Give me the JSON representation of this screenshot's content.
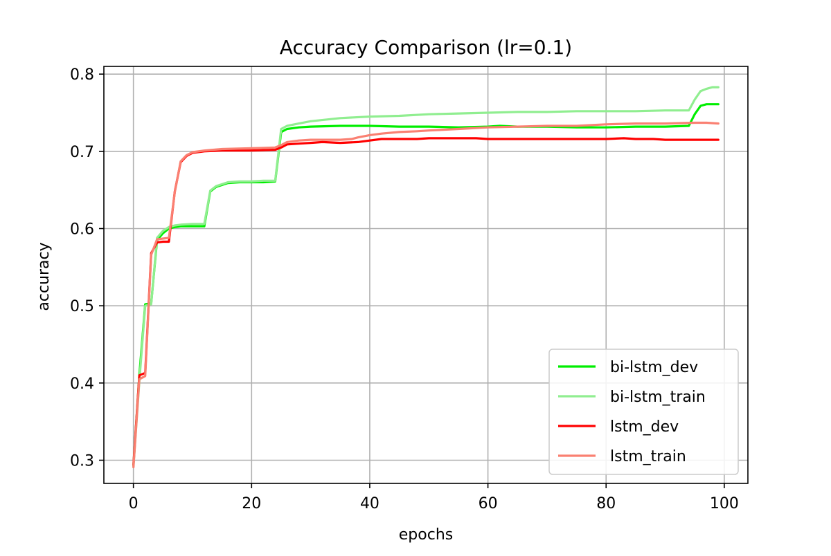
{
  "chart_data": {
    "type": "line",
    "title": "Accuracy Comparison (lr=0.1)",
    "xlabel": "epochs",
    "ylabel": "accuracy",
    "xlim": [
      -5,
      104
    ],
    "ylim": [
      0.27,
      0.81
    ],
    "x_ticks": [
      0,
      20,
      40,
      60,
      80,
      100
    ],
    "y_ticks": [
      0.3,
      0.4,
      0.5,
      0.6,
      0.7,
      0.8
    ],
    "x_tick_labels": [
      "0",
      "20",
      "40",
      "60",
      "80",
      "100"
    ],
    "y_tick_labels": [
      "0.3",
      "0.4",
      "0.5",
      "0.6",
      "0.7",
      "0.8"
    ],
    "grid": true,
    "legend_position": "lower-right",
    "series": [
      {
        "name": "bi-lstm_dev",
        "color": "#00ee00",
        "points": [
          [
            0,
            0.293
          ],
          [
            1,
            0.41
          ],
          [
            2,
            0.502
          ],
          [
            3,
            0.503
          ],
          [
            4,
            0.585
          ],
          [
            5,
            0.594
          ],
          [
            6,
            0.6
          ],
          [
            7,
            0.602
          ],
          [
            8,
            0.603
          ],
          [
            10,
            0.603
          ],
          [
            12,
            0.603
          ],
          [
            13,
            0.648
          ],
          [
            14,
            0.654
          ],
          [
            16,
            0.659
          ],
          [
            18,
            0.66
          ],
          [
            20,
            0.66
          ],
          [
            22,
            0.66
          ],
          [
            24,
            0.661
          ],
          [
            25,
            0.725
          ],
          [
            26,
            0.729
          ],
          [
            28,
            0.731
          ],
          [
            30,
            0.732
          ],
          [
            35,
            0.733
          ],
          [
            40,
            0.733
          ],
          [
            45,
            0.732
          ],
          [
            50,
            0.732
          ],
          [
            55,
            0.731
          ],
          [
            60,
            0.732
          ],
          [
            62,
            0.733
          ],
          [
            65,
            0.732
          ],
          [
            70,
            0.732
          ],
          [
            75,
            0.731
          ],
          [
            80,
            0.731
          ],
          [
            85,
            0.732
          ],
          [
            90,
            0.732
          ],
          [
            94,
            0.733
          ],
          [
            95,
            0.748
          ],
          [
            96,
            0.759
          ],
          [
            97,
            0.761
          ],
          [
            98,
            0.761
          ],
          [
            99,
            0.761
          ]
        ]
      },
      {
        "name": "bi-lstm_train",
        "color": "#90ee90",
        "points": [
          [
            0,
            0.292
          ],
          [
            1,
            0.402
          ],
          [
            2,
            0.5
          ],
          [
            3,
            0.502
          ],
          [
            4,
            0.588
          ],
          [
            5,
            0.597
          ],
          [
            6,
            0.602
          ],
          [
            7,
            0.604
          ],
          [
            8,
            0.605
          ],
          [
            10,
            0.606
          ],
          [
            12,
            0.606
          ],
          [
            13,
            0.649
          ],
          [
            14,
            0.655
          ],
          [
            16,
            0.66
          ],
          [
            18,
            0.661
          ],
          [
            20,
            0.661
          ],
          [
            22,
            0.662
          ],
          [
            24,
            0.662
          ],
          [
            25,
            0.729
          ],
          [
            26,
            0.733
          ],
          [
            28,
            0.736
          ],
          [
            30,
            0.739
          ],
          [
            35,
            0.743
          ],
          [
            40,
            0.745
          ],
          [
            45,
            0.746
          ],
          [
            50,
            0.748
          ],
          [
            55,
            0.749
          ],
          [
            60,
            0.75
          ],
          [
            65,
            0.751
          ],
          [
            70,
            0.751
          ],
          [
            75,
            0.752
          ],
          [
            80,
            0.752
          ],
          [
            85,
            0.752
          ],
          [
            90,
            0.753
          ],
          [
            94,
            0.753
          ],
          [
            95,
            0.767
          ],
          [
            96,
            0.778
          ],
          [
            97,
            0.781
          ],
          [
            98,
            0.783
          ],
          [
            99,
            0.783
          ]
        ]
      },
      {
        "name": "lstm_dev",
        "color": "#ff0000",
        "points": [
          [
            0,
            0.294
          ],
          [
            1,
            0.41
          ],
          [
            2,
            0.413
          ],
          [
            3,
            0.568
          ],
          [
            4,
            0.582
          ],
          [
            5,
            0.583
          ],
          [
            6,
            0.583
          ],
          [
            7,
            0.648
          ],
          [
            8,
            0.686
          ],
          [
            9,
            0.694
          ],
          [
            10,
            0.698
          ],
          [
            12,
            0.7
          ],
          [
            15,
            0.701
          ],
          [
            20,
            0.701
          ],
          [
            24,
            0.702
          ],
          [
            25,
            0.705
          ],
          [
            26,
            0.709
          ],
          [
            28,
            0.71
          ],
          [
            30,
            0.711
          ],
          [
            32,
            0.712
          ],
          [
            35,
            0.711
          ],
          [
            38,
            0.712
          ],
          [
            40,
            0.714
          ],
          [
            42,
            0.716
          ],
          [
            45,
            0.716
          ],
          [
            48,
            0.716
          ],
          [
            50,
            0.717
          ],
          [
            52,
            0.717
          ],
          [
            55,
            0.717
          ],
          [
            58,
            0.717
          ],
          [
            60,
            0.716
          ],
          [
            62,
            0.716
          ],
          [
            65,
            0.716
          ],
          [
            70,
            0.716
          ],
          [
            72,
            0.716
          ],
          [
            75,
            0.716
          ],
          [
            78,
            0.716
          ],
          [
            80,
            0.716
          ],
          [
            83,
            0.717
          ],
          [
            85,
            0.716
          ],
          [
            88,
            0.716
          ],
          [
            90,
            0.715
          ],
          [
            93,
            0.715
          ],
          [
            95,
            0.715
          ],
          [
            97,
            0.715
          ],
          [
            99,
            0.715
          ]
        ]
      },
      {
        "name": "lstm_train",
        "color": "#fa8072",
        "points": [
          [
            0,
            0.291
          ],
          [
            1,
            0.405
          ],
          [
            2,
            0.409
          ],
          [
            3,
            0.566
          ],
          [
            4,
            0.586
          ],
          [
            5,
            0.587
          ],
          [
            6,
            0.588
          ],
          [
            7,
            0.647
          ],
          [
            8,
            0.687
          ],
          [
            9,
            0.695
          ],
          [
            10,
            0.699
          ],
          [
            12,
            0.701
          ],
          [
            15,
            0.703
          ],
          [
            20,
            0.704
          ],
          [
            24,
            0.705
          ],
          [
            25,
            0.708
          ],
          [
            26,
            0.712
          ],
          [
            28,
            0.714
          ],
          [
            30,
            0.715
          ],
          [
            32,
            0.715
          ],
          [
            35,
            0.715
          ],
          [
            37,
            0.716
          ],
          [
            38,
            0.718
          ],
          [
            40,
            0.721
          ],
          [
            42,
            0.723
          ],
          [
            45,
            0.725
          ],
          [
            48,
            0.726
          ],
          [
            50,
            0.727
          ],
          [
            55,
            0.729
          ],
          [
            60,
            0.731
          ],
          [
            65,
            0.732
          ],
          [
            70,
            0.733
          ],
          [
            75,
            0.733
          ],
          [
            80,
            0.735
          ],
          [
            85,
            0.736
          ],
          [
            90,
            0.736
          ],
          [
            95,
            0.737
          ],
          [
            97,
            0.737
          ],
          [
            99,
            0.736
          ]
        ]
      }
    ]
  }
}
